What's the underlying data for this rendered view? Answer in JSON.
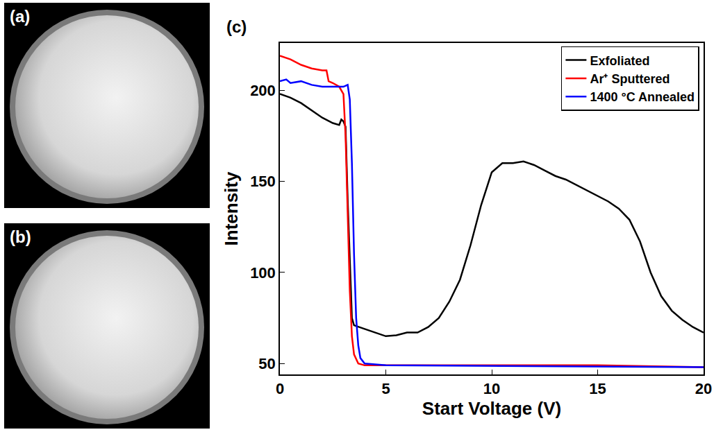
{
  "images": [
    {
      "label": "(a)"
    },
    {
      "label": "(b)"
    }
  ],
  "chart_data": {
    "type": "line",
    "panel_label": "(c)",
    "x_label": "Start Voltage (V)",
    "y_label": "Intensity",
    "xlim": [
      0,
      20
    ],
    "xticks": [
      0,
      5,
      10,
      15,
      20
    ],
    "ylim": [
      44,
      226
    ],
    "yticks": [
      50,
      100,
      150,
      200
    ],
    "grid": false,
    "legend": "top right",
    "series": [
      {
        "name": "Exfoliated",
        "color": "#000000",
        "x": [
          0,
          0.5,
          1,
          1.5,
          2,
          2.5,
          2.8,
          2.9,
          3.0,
          3.1,
          3.2,
          3.4,
          3.5,
          4,
          4.5,
          5,
          5.5,
          6,
          6.5,
          7,
          7.5,
          8,
          8.5,
          9,
          9.5,
          10,
          10.5,
          11,
          11.5,
          12,
          12.5,
          13,
          13.5,
          14,
          14.5,
          15,
          15.5,
          16,
          16.5,
          17,
          17.5,
          18,
          18.5,
          19,
          19.5,
          20
        ],
        "values": [
          198,
          196,
          193,
          189,
          185,
          182,
          181,
          184,
          183,
          180,
          140,
          75,
          71,
          69,
          67,
          65,
          65.5,
          67,
          67,
          70,
          75,
          84,
          96,
          115,
          137,
          155,
          160,
          160,
          161,
          159,
          156,
          153,
          151,
          148,
          145,
          142,
          139,
          135,
          129,
          117,
          100,
          87,
          79,
          74,
          70,
          67
        ]
      },
      {
        "name": "Ar⁺ Sputtered",
        "color": "#ff0000",
        "x": [
          0,
          0.5,
          1,
          1.5,
          2,
          2.2,
          2.3,
          2.5,
          2.8,
          3.0,
          3.1,
          3.2,
          3.3,
          3.4,
          3.5,
          3.7,
          4,
          5,
          10,
          15,
          20
        ],
        "values": [
          219,
          217,
          214,
          212,
          211,
          211,
          205,
          204,
          202,
          198,
          175,
          130,
          90,
          65,
          55,
          50,
          49,
          49,
          49,
          49,
          48
        ]
      },
      {
        "name": "1400 °C Annealed",
        "color": "#0000ff",
        "x": [
          0,
          0.3,
          0.5,
          1,
          1.5,
          2,
          2.2,
          2.5,
          3,
          3.2,
          3.3,
          3.4,
          3.5,
          3.6,
          3.7,
          3.8,
          4,
          5,
          20
        ],
        "values": [
          205,
          206,
          204,
          205,
          203,
          202,
          202,
          202,
          202,
          203,
          195,
          160,
          110,
          75,
          60,
          53,
          50,
          49,
          48
        ]
      }
    ]
  }
}
